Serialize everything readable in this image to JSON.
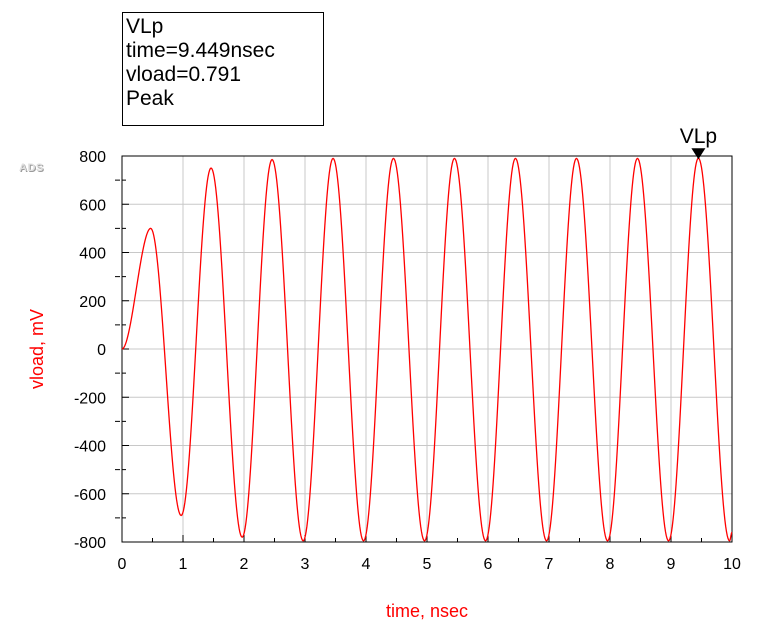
{
  "marker": {
    "name": "VLp",
    "line_time": "time=9.449nsec",
    "line_value": "vload=0.791",
    "line_type": "Peak",
    "x": 9.449,
    "y": 791
  },
  "logo": "ADS",
  "chart_data": {
    "type": "line",
    "title": "",
    "xlabel": "time, nsec",
    "ylabel": "vload, mV",
    "xlim": [
      0,
      10
    ],
    "ylim": [
      -800,
      800
    ],
    "x_ticks": [
      "0",
      "1",
      "2",
      "3",
      "4",
      "5",
      "6",
      "7",
      "8",
      "9",
      "10"
    ],
    "y_ticks": [
      "800",
      "600",
      "400",
      "200",
      "0",
      "-200",
      "-400",
      "-600",
      "-800"
    ],
    "grid": true,
    "color": "#ff0000",
    "series": [
      {
        "name": "",
        "x": [
          0,
          0.47,
          0.97,
          1.46,
          1.97,
          2.46,
          2.97,
          3.46,
          3.96,
          4.45,
          4.96,
          5.45,
          5.96,
          6.45,
          6.96,
          7.45,
          7.96,
          8.45,
          8.96,
          9.449,
          9.96,
          10
        ],
        "y": [
          0,
          500,
          -690,
          750,
          -780,
          785,
          -795,
          790,
          -795,
          790,
          -795,
          790,
          -795,
          790,
          -795,
          790,
          -795,
          790,
          -795,
          791,
          -795,
          -760
        ]
      }
    ]
  }
}
